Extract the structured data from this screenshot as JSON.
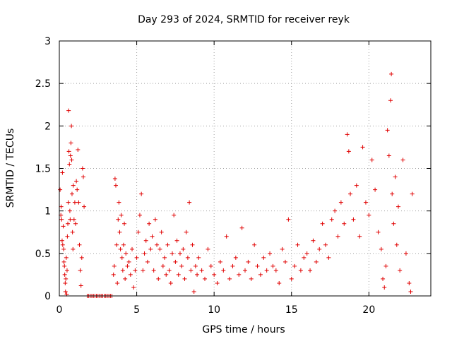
{
  "chart_data": {
    "type": "scatter",
    "title": "Day 293 of 2024, SRMTID for receiver reyk",
    "xlabel": "GPS time / hours",
    "ylabel": "SRMTID / TECUs",
    "xlim": [
      0,
      24
    ],
    "ylim": [
      0,
      3
    ],
    "xticks": [
      0,
      5,
      10,
      15,
      20
    ],
    "yticks": [
      0,
      0.5,
      1,
      1.5,
      2,
      2.5,
      3
    ],
    "xtick_labels": [
      "0",
      "5",
      "10",
      "15",
      "20"
    ],
    "ytick_labels": [
      "0",
      "0.5",
      "1",
      "1.5",
      "2",
      "2.5",
      "3"
    ],
    "grid": true,
    "marker": "+",
    "color": "#e00000",
    "series": [
      {
        "name": "SRMTID",
        "points": [
          [
            0.05,
            1.25
          ],
          [
            0.1,
            0.95
          ],
          [
            0.12,
            1.05
          ],
          [
            0.15,
            0.9
          ],
          [
            0.18,
            0.65
          ],
          [
            0.2,
            1.45
          ],
          [
            0.22,
            0.6
          ],
          [
            0.25,
            0.82
          ],
          [
            0.28,
            0.55
          ],
          [
            0.3,
            0.4
          ],
          [
            0.33,
            0.35
          ],
          [
            0.35,
            0.25
          ],
          [
            0.38,
            0.15
          ],
          [
            0.4,
            0.05
          ],
          [
            0.42,
            0.2
          ],
          [
            0.45,
            0.45
          ],
          [
            0.48,
            0.02
          ],
          [
            0.5,
            0.3
          ],
          [
            0.52,
            0.7
          ],
          [
            0.55,
            0.85
          ],
          [
            0.58,
            1.1
          ],
          [
            0.6,
            2.18
          ],
          [
            0.62,
            1.7
          ],
          [
            0.65,
            1.55
          ],
          [
            0.68,
            1.0
          ],
          [
            0.7,
            0.9
          ],
          [
            0.72,
            1.65
          ],
          [
            0.75,
            1.8
          ],
          [
            0.78,
            2.0
          ],
          [
            0.8,
            1.6
          ],
          [
            0.82,
            1.2
          ],
          [
            0.85,
            0.75
          ],
          [
            0.88,
            0.55
          ],
          [
            0.9,
            1.3
          ],
          [
            0.95,
            0.9
          ],
          [
            1.0,
            1.1
          ],
          [
            1.05,
            0.85
          ],
          [
            1.1,
            1.35
          ],
          [
            1.15,
            1.25
          ],
          [
            1.2,
            1.72
          ],
          [
            1.25,
            1.1
          ],
          [
            1.3,
            0.6
          ],
          [
            1.35,
            0.3
          ],
          [
            1.4,
            0.12
          ],
          [
            1.45,
            0.45
          ],
          [
            1.5,
            1.5
          ],
          [
            1.55,
            1.4
          ],
          [
            1.6,
            1.05
          ],
          [
            1.8,
            0
          ],
          [
            1.9,
            0
          ],
          [
            2.0,
            0
          ],
          [
            2.1,
            0
          ],
          [
            2.2,
            0
          ],
          [
            2.3,
            0
          ],
          [
            2.4,
            0
          ],
          [
            2.5,
            0
          ],
          [
            2.6,
            0
          ],
          [
            2.7,
            0
          ],
          [
            2.8,
            0
          ],
          [
            2.9,
            0
          ],
          [
            3.0,
            0
          ],
          [
            3.1,
            0
          ],
          [
            3.2,
            0
          ],
          [
            3.3,
            0
          ],
          [
            3.4,
            0
          ],
          [
            3.5,
            0.25
          ],
          [
            3.55,
            0.35
          ],
          [
            3.6,
            1.38
          ],
          [
            3.65,
            1.3
          ],
          [
            3.7,
            0.6
          ],
          [
            3.75,
            0.15
          ],
          [
            3.8,
            0.9
          ],
          [
            3.85,
            1.1
          ],
          [
            3.9,
            0.75
          ],
          [
            3.95,
            0.55
          ],
          [
            4.0,
            0.95
          ],
          [
            4.05,
            0.45
          ],
          [
            4.1,
            0.3
          ],
          [
            4.15,
            0.6
          ],
          [
            4.2,
            0.85
          ],
          [
            4.25,
            0.2
          ],
          [
            4.3,
            0.5
          ],
          [
            4.4,
            0.35
          ],
          [
            4.5,
            0.4
          ],
          [
            4.6,
            0.25
          ],
          [
            4.7,
            0.55
          ],
          [
            4.8,
            0.1
          ],
          [
            4.9,
            0.3
          ],
          [
            5.0,
            0.45
          ],
          [
            5.1,
            0.75
          ],
          [
            5.2,
            0.95
          ],
          [
            5.3,
            1.2
          ],
          [
            5.4,
            0.3
          ],
          [
            5.5,
            0.5
          ],
          [
            5.6,
            0.65
          ],
          [
            5.7,
            0.4
          ],
          [
            5.8,
            0.85
          ],
          [
            5.9,
            0.55
          ],
          [
            6.0,
            0.7
          ],
          [
            6.1,
            0.3
          ],
          [
            6.2,
            0.9
          ],
          [
            6.3,
            0.6
          ],
          [
            6.4,
            0.2
          ],
          [
            6.5,
            0.55
          ],
          [
            6.6,
            0.75
          ],
          [
            6.7,
            0.35
          ],
          [
            6.8,
            0.45
          ],
          [
            6.9,
            0.25
          ],
          [
            7.0,
            0.6
          ],
          [
            7.1,
            0.3
          ],
          [
            7.2,
            0.15
          ],
          [
            7.3,
            0.5
          ],
          [
            7.4,
            0.95
          ],
          [
            7.5,
            0.4
          ],
          [
            7.6,
            0.65
          ],
          [
            7.7,
            0.25
          ],
          [
            7.8,
            0.5
          ],
          [
            7.9,
            0.35
          ],
          [
            8.0,
            0.55
          ],
          [
            8.1,
            0.2
          ],
          [
            8.2,
            0.75
          ],
          [
            8.3,
            0.45
          ],
          [
            8.4,
            1.1
          ],
          [
            8.5,
            0.3
          ],
          [
            8.6,
            0.6
          ],
          [
            8.7,
            0.05
          ],
          [
            8.8,
            0.35
          ],
          [
            8.9,
            0.25
          ],
          [
            9.0,
            0.45
          ],
          [
            9.2,
            0.3
          ],
          [
            9.4,
            0.2
          ],
          [
            9.6,
            0.55
          ],
          [
            9.8,
            0.35
          ],
          [
            10.0,
            0.25
          ],
          [
            10.2,
            0.15
          ],
          [
            10.4,
            0.4
          ],
          [
            10.6,
            0.3
          ],
          [
            10.8,
            0.7
          ],
          [
            11.0,
            0.2
          ],
          [
            11.2,
            0.35
          ],
          [
            11.4,
            0.45
          ],
          [
            11.6,
            0.25
          ],
          [
            11.8,
            0.8
          ],
          [
            12.0,
            0.3
          ],
          [
            12.2,
            0.4
          ],
          [
            12.4,
            0.2
          ],
          [
            12.6,
            0.6
          ],
          [
            12.8,
            0.35
          ],
          [
            13.0,
            0.25
          ],
          [
            13.2,
            0.45
          ],
          [
            13.4,
            0.3
          ],
          [
            13.6,
            0.5
          ],
          [
            13.8,
            0.35
          ],
          [
            14.0,
            0.3
          ],
          [
            14.2,
            0.15
          ],
          [
            14.4,
            0.55
          ],
          [
            14.6,
            0.4
          ],
          [
            14.8,
            0.9
          ],
          [
            15.0,
            0.2
          ],
          [
            15.2,
            0.35
          ],
          [
            15.4,
            0.6
          ],
          [
            15.6,
            0.3
          ],
          [
            15.8,
            0.45
          ],
          [
            16.0,
            0.5
          ],
          [
            16.2,
            0.3
          ],
          [
            16.4,
            0.65
          ],
          [
            16.6,
            0.4
          ],
          [
            16.8,
            0.55
          ],
          [
            17.0,
            0.85
          ],
          [
            17.2,
            0.6
          ],
          [
            17.4,
            0.45
          ],
          [
            17.6,
            0.9
          ],
          [
            17.8,
            1.0
          ],
          [
            18.0,
            0.7
          ],
          [
            18.2,
            1.1
          ],
          [
            18.4,
            0.85
          ],
          [
            18.6,
            1.9
          ],
          [
            18.7,
            1.7
          ],
          [
            18.8,
            1.2
          ],
          [
            19.0,
            0.9
          ],
          [
            19.2,
            1.3
          ],
          [
            19.4,
            0.7
          ],
          [
            19.6,
            1.75
          ],
          [
            19.8,
            1.1
          ],
          [
            20.0,
            0.95
          ],
          [
            20.2,
            1.6
          ],
          [
            20.4,
            1.25
          ],
          [
            20.6,
            0.75
          ],
          [
            20.8,
            0.55
          ],
          [
            20.9,
            0.2
          ],
          [
            21.0,
            0.1
          ],
          [
            21.1,
            0.35
          ],
          [
            21.2,
            1.95
          ],
          [
            21.3,
            1.65
          ],
          [
            21.4,
            2.3
          ],
          [
            21.45,
            2.61
          ],
          [
            21.5,
            1.2
          ],
          [
            21.6,
            0.85
          ],
          [
            21.7,
            1.4
          ],
          [
            21.8,
            0.6
          ],
          [
            21.9,
            1.05
          ],
          [
            22.0,
            0.3
          ],
          [
            22.2,
            1.6
          ],
          [
            22.4,
            0.5
          ],
          [
            22.6,
            0.15
          ],
          [
            22.7,
            0.05
          ],
          [
            22.8,
            1.2
          ]
        ]
      }
    ]
  }
}
